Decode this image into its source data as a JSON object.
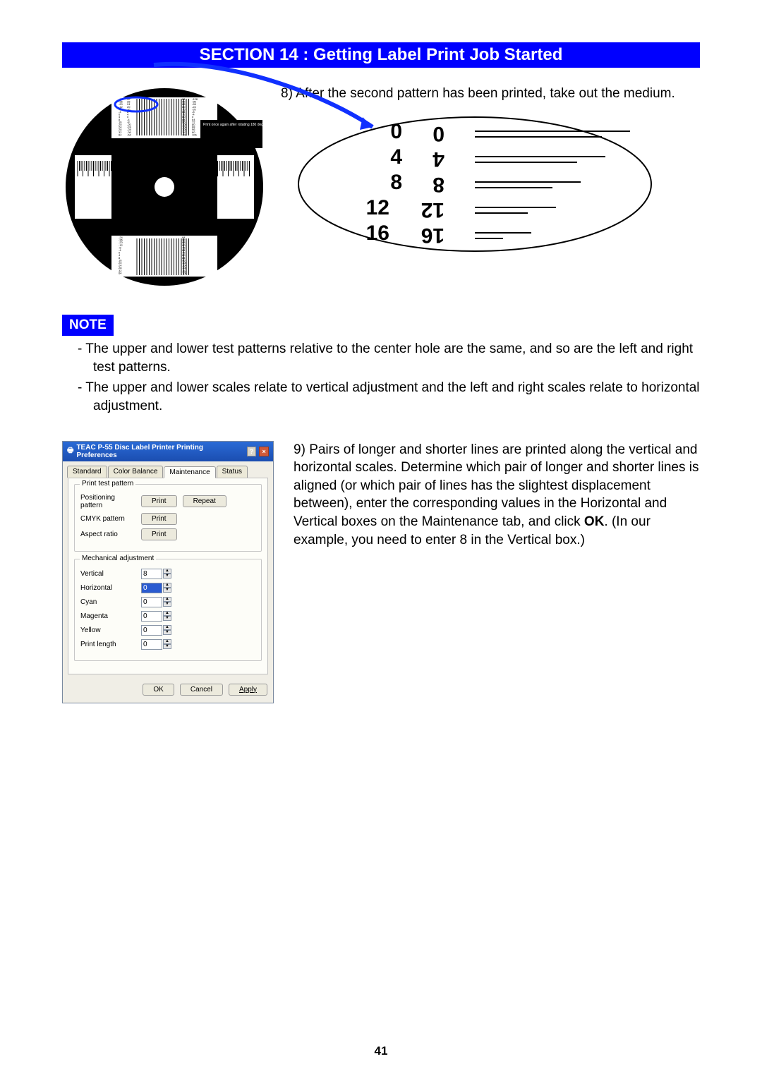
{
  "header_title": "SECTION 14 : Getting Label Print Job Started",
  "step8_prefix": "8)",
  "step8_text": "After the second pattern has been printed, take out the medium.",
  "note_label": "NOTE",
  "notes": [
    "- The upper and lower test patterns relative to the center hole are the same, and so are the left and right test patterns.",
    "- The upper and lower scales relate to vertical adjustment and the left and right scales relate to horizontal adjustment."
  ],
  "step9_prefix": "9)",
  "step9_text_a": "Pairs of longer and shorter lines are printed along the vertical and horizontal scales. Determine which pair of longer and shorter lines is aligned (or which pair of lines has the slightest displacement between), enter the corresponding values in the Horizontal and Vertical boxes on the Maintenance tab, and click ",
  "step9_ok": "OK",
  "step9_text_b": ". (In our example, you need to enter 8 in the Vertical box.)",
  "page_number": "41",
  "disc": {
    "callout": "Print once again after rotating 180 degree. Then find the best value to the closest two combination and input the N/m correction adjustment values.",
    "left_cols": [
      "-24",
      "-36",
      "-20",
      "-12",
      "-8",
      "-4",
      "0",
      "4",
      "8",
      "16",
      "20",
      "24",
      "28",
      "32",
      "64"
    ],
    "left_cols2": [
      "32",
      "28",
      "24",
      "20",
      "16",
      "8",
      "4",
      "0",
      "-4",
      "-8",
      "-20",
      "-24",
      "-28",
      "-36",
      "-64"
    ],
    "right_cols": [
      "84",
      "92",
      "88",
      "80",
      "76",
      "64",
      "72",
      "80",
      "84",
      "96",
      "100",
      "104",
      "108",
      "112",
      "106"
    ],
    "right_cols2": [
      "-128",
      "-36",
      "-28",
      "-24",
      "-20",
      "-8",
      "-4",
      "0",
      "64",
      "72",
      "80",
      "88",
      "96",
      "80",
      "106"
    ],
    "pattern_line_count": 22
  },
  "ellipse": {
    "left_numbers": [
      "0",
      "4",
      "8",
      "12",
      "16"
    ],
    "right_numbers": [
      "0",
      "4",
      "8",
      "12",
      "16"
    ],
    "line_pairs": 5
  },
  "dialog": {
    "title": "TEAC P-55 Disc Label Printer Printing Preferences",
    "help_glyph": "?",
    "close_glyph": "×",
    "tabs": [
      "Standard",
      "Color Balance",
      "Maintenance",
      "Status"
    ],
    "active_tab_index": 2,
    "group1_title": "Print test pattern",
    "rows1": [
      {
        "label": "Positioning pattern",
        "buttons": [
          "Print",
          "Repeat"
        ]
      },
      {
        "label": "CMYK pattern",
        "buttons": [
          "Print"
        ]
      },
      {
        "label": "Aspect ratio",
        "buttons": [
          "Print"
        ]
      }
    ],
    "group2_title": "Mechanical adjustment",
    "rows2": [
      {
        "label": "Vertical",
        "value": "8",
        "selected": false
      },
      {
        "label": "Horizontal",
        "value": "0",
        "selected": true
      },
      {
        "label": "Cyan",
        "value": "0",
        "selected": false
      },
      {
        "label": "Magenta",
        "value": "0",
        "selected": false
      },
      {
        "label": "Yellow",
        "value": "0",
        "selected": false
      },
      {
        "label": "Print length",
        "value": "0",
        "selected": false
      }
    ],
    "footer_buttons": [
      "OK",
      "Cancel",
      "Apply"
    ]
  },
  "colors": {
    "accent_blue": "#0000ff",
    "arrow_blue": "#1030ff",
    "dialog_title_bg": "#2a6bd6",
    "dialog_bg": "#f0eee6",
    "panel_bg": "#fdfdf8",
    "close_red": "#d15a3a"
  }
}
